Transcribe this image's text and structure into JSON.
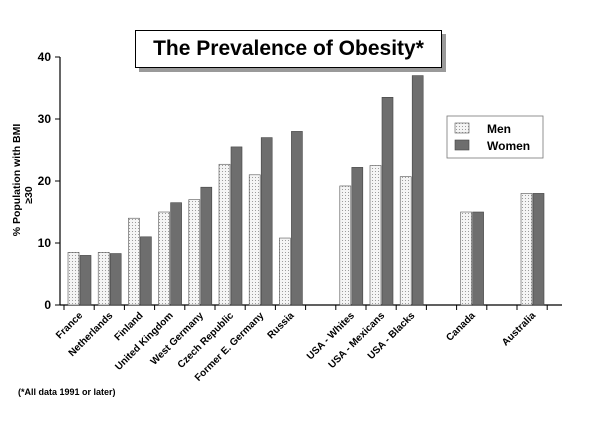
{
  "chart_data": {
    "type": "bar",
    "title": "The Prevalence of Obesity*",
    "ylabel": "% Population with BMI ≥30",
    "ylabel_lines": [
      "% Population with BMI",
      "≥30"
    ],
    "ylim": [
      0,
      40
    ],
    "yticks": [
      0,
      10,
      20,
      30,
      40
    ],
    "categories": [
      "France",
      "Netherlands",
      "Finland",
      "United Kingdom",
      "West Germany",
      "Czech Republic",
      "Former E. Germany",
      "Russia",
      "USA - Whites",
      "USA - Mexicans",
      "USA - Blacks",
      "Canada",
      "Australia"
    ],
    "groups": [
      8,
      3,
      1,
      1
    ],
    "series": [
      {
        "name": "Men",
        "color": "#e8e8e8",
        "values": [
          8.5,
          8.5,
          14,
          15,
          17,
          22.7,
          21,
          10.8,
          19.2,
          22.5,
          20.7,
          15,
          18
        ]
      },
      {
        "name": "Women",
        "color": "#6e6e6e",
        "values": [
          8,
          8.3,
          11,
          16.5,
          19,
          25.5,
          27,
          28,
          22.2,
          33.5,
          37,
          15,
          18
        ]
      }
    ],
    "legend_position": "right",
    "grid": false,
    "footnote": "(*All data 1991 or later)"
  }
}
